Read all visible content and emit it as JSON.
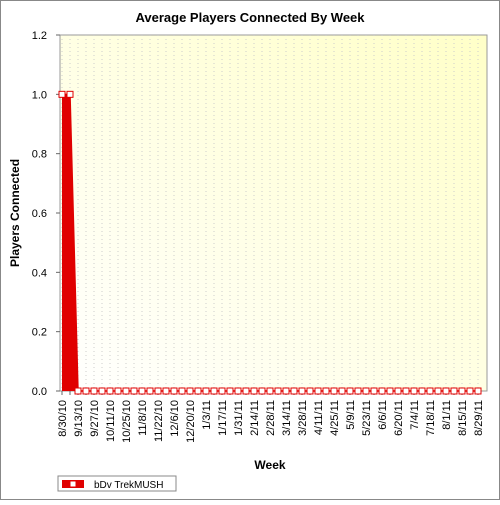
{
  "chart_data": {
    "type": "area",
    "title": "Average Players Connected By Week",
    "x_label": "Week",
    "y_label": "Players Connected",
    "categories": [
      "8/30/10",
      null,
      "9/13/10",
      null,
      "9/27/10",
      null,
      "10/11/10",
      null,
      "10/25/10",
      null,
      "11/8/10",
      null,
      "11/22/10",
      null,
      "12/6/10",
      null,
      "12/20/10",
      null,
      "1/3/11",
      null,
      "1/17/11",
      null,
      "1/31/11",
      null,
      "2/14/11",
      null,
      "2/28/11",
      null,
      "3/14/11",
      null,
      "3/28/11",
      null,
      "4/11/11",
      null,
      "4/25/11",
      null,
      "5/9/11",
      null,
      "5/23/11",
      null,
      "6/6/11",
      null,
      "6/20/11",
      null,
      "7/4/11",
      null,
      "7/18/11",
      null,
      "8/1/11",
      null,
      "8/15/11",
      null,
      "8/29/11"
    ],
    "series": [
      {
        "name": "bDv TrekMUSH",
        "color": "#e00000",
        "values": [
          1,
          1,
          0,
          0,
          0,
          0,
          0,
          0,
          0,
          0,
          0,
          0,
          0,
          0,
          0,
          0,
          0,
          0,
          0,
          0,
          0,
          0,
          0,
          0,
          0,
          0,
          0,
          0,
          0,
          0,
          0,
          0,
          0,
          0,
          0,
          0,
          0,
          0,
          0,
          0,
          0,
          0,
          0,
          0,
          0,
          0,
          0,
          0,
          0,
          0,
          0,
          0,
          0
        ]
      }
    ],
    "ylim": [
      0,
      1.2
    ],
    "yticks": [
      {
        "value": 0,
        "label": "0.0"
      },
      0.2,
      0.4,
      0.6,
      0.8,
      {
        "value": 1,
        "label": "1.0"
      },
      1.2
    ],
    "grid": true,
    "legend": "bottom-left"
  }
}
